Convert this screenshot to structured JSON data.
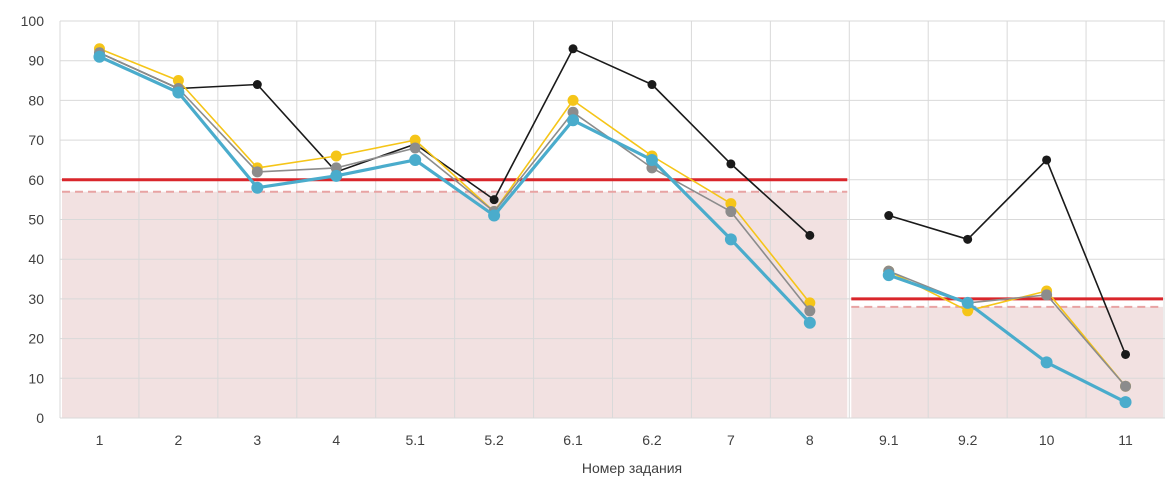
{
  "chart_data": {
    "type": "line",
    "xlabel": "Номер задания",
    "ylabel": "",
    "title": "",
    "ylim": [
      0,
      100
    ],
    "y_ticks": [
      "0",
      "10",
      "20",
      "30",
      "40",
      "50",
      "60",
      "70",
      "80",
      "90",
      "100"
    ],
    "categories": [
      "1",
      "2",
      "3",
      "4",
      "5.1",
      "5.2",
      "6.1",
      "6.2",
      "7",
      "8",
      "9.1",
      "9.2",
      "10",
      "11"
    ],
    "grid": true,
    "legend": "none",
    "series": [
      {
        "color": "#1a1a1a",
        "values": [
          92,
          83,
          84,
          62,
          69,
          55,
          93,
          84,
          64,
          46,
          51,
          45,
          65,
          16
        ]
      },
      {
        "color": "#f5c518",
        "values": [
          93,
          85,
          63,
          66,
          70,
          52,
          80,
          66,
          54,
          29,
          37,
          27,
          32,
          8
        ]
      },
      {
        "color": "#8c8c8c",
        "values": [
          92,
          83,
          62,
          63,
          68,
          52,
          77,
          63,
          52,
          27,
          37,
          29,
          31,
          8
        ]
      },
      {
        "color": "#4aaccc",
        "values": [
          91,
          82,
          58,
          61,
          65,
          51,
          75,
          65,
          45,
          24,
          36,
          29,
          14,
          4
        ]
      }
    ],
    "thresholds": [
      {
        "from": "1",
        "to": "8",
        "solid": 60,
        "dashed": 57,
        "color": "#d9262b"
      },
      {
        "from": "9.1",
        "to": "11",
        "solid": 30,
        "dashed": 28,
        "color": "#d9262b"
      }
    ],
    "shaded_region_color": "#f2e1e1"
  }
}
